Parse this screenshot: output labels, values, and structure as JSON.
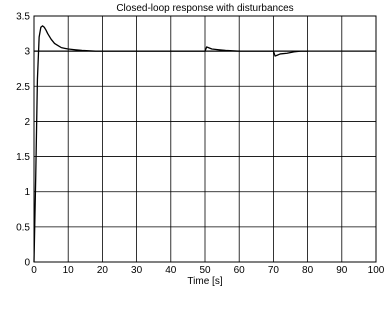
{
  "chart_data": {
    "type": "line",
    "title": "Closed-loop response with disturbances",
    "xlabel": "Time [s]",
    "ylabel": "",
    "xlim": [
      0,
      100
    ],
    "ylim": [
      0,
      3.5
    ],
    "grid": true,
    "x_ticks": [
      "0",
      "10",
      "20",
      "30",
      "40",
      "50",
      "60",
      "70",
      "80",
      "90",
      "100"
    ],
    "y_ticks": [
      "0",
      "0.5",
      "1",
      "1.5",
      "2",
      "2.5",
      "3",
      "3.5"
    ],
    "reference": {
      "y": 3,
      "x": [
        0,
        100
      ]
    },
    "series": [
      {
        "color": "#000000",
        "x": [
          0,
          0.5,
          1,
          1.5,
          2,
          2.5,
          3,
          3.5,
          4,
          5,
          6,
          7,
          8,
          9,
          10,
          12,
          14,
          16,
          18,
          20,
          50,
          50.5,
          51,
          52,
          54,
          56,
          58,
          60,
          70,
          70.5,
          71,
          72,
          74,
          76,
          78,
          80
        ],
        "y": [
          0,
          1.2,
          2.6,
          3.2,
          3.34,
          3.36,
          3.34,
          3.3,
          3.25,
          3.17,
          3.11,
          3.08,
          3.05,
          3.04,
          3.03,
          3.02,
          3.01,
          3.005,
          3.0,
          3.0,
          3.0,
          3.06,
          3.05,
          3.03,
          3.02,
          3.01,
          3.005,
          3.0,
          3.0,
          2.93,
          2.94,
          2.96,
          2.97,
          2.99,
          3.0,
          3.0
        ]
      }
    ]
  }
}
